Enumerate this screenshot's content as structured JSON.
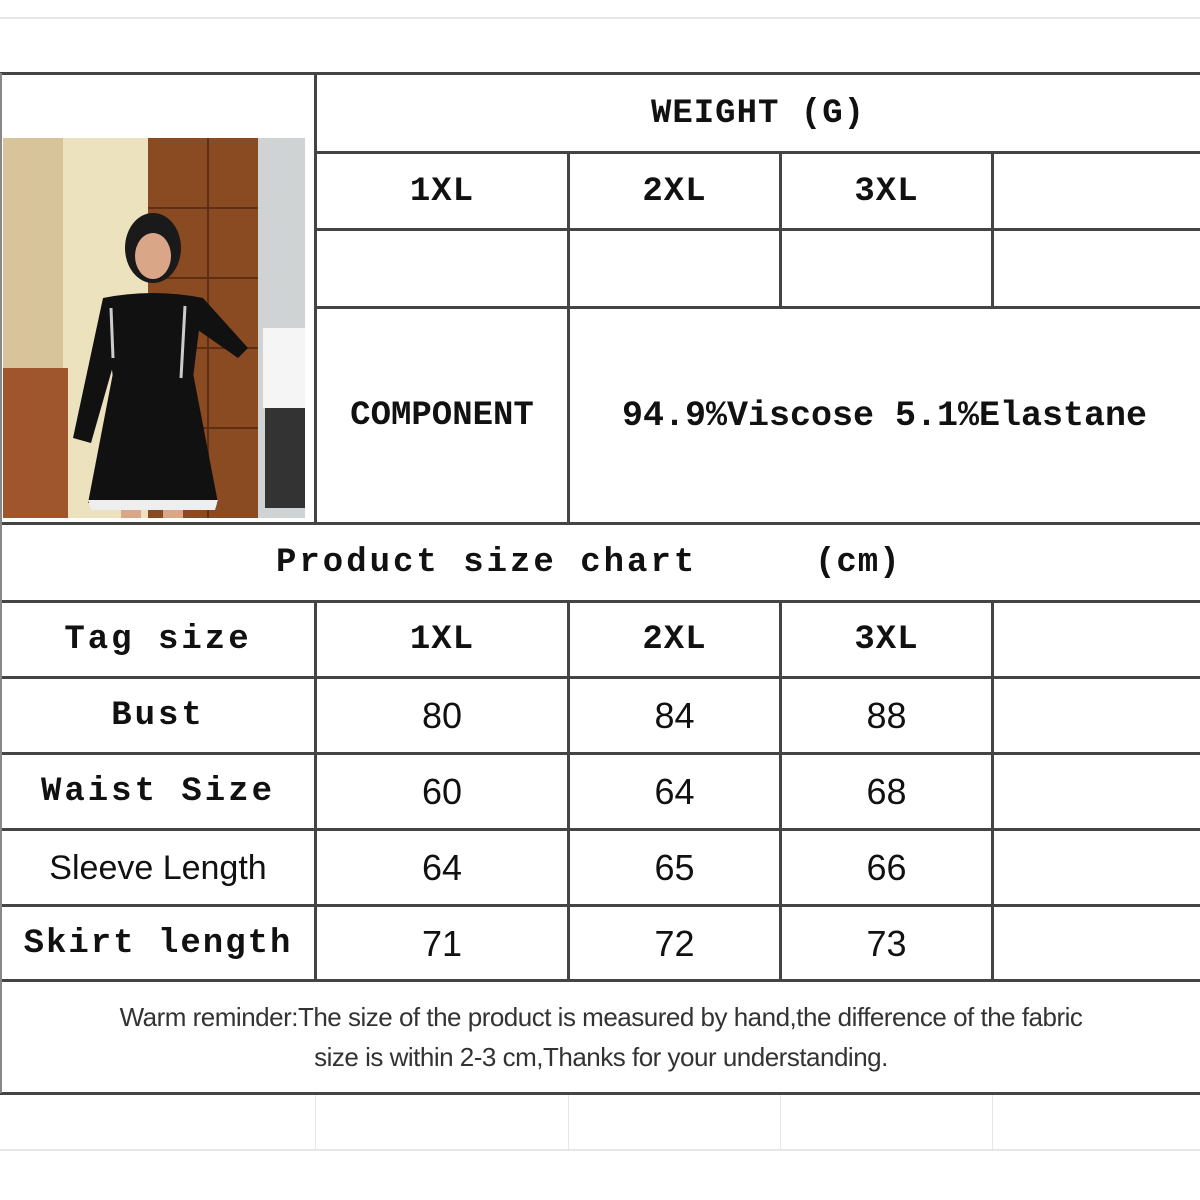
{
  "weight_header": "WEIGHT (G)",
  "weight_sizes": [
    "1XL",
    "2XL",
    "3XL",
    ""
  ],
  "weight_values": [
    "",
    "",
    "",
    ""
  ],
  "component": {
    "label": "COMPONENT",
    "value": "94.9%Viscose 5.1%Elastane"
  },
  "size_chart_title": "Product size chart",
  "size_chart_unit": "(cm)",
  "table": {
    "header": [
      "Tag size",
      "1XL",
      "2XL",
      "3XL",
      ""
    ],
    "rows": [
      [
        "Bust",
        "80",
        "84",
        "88",
        ""
      ],
      [
        "Waist Size",
        "60",
        "64",
        "68",
        ""
      ],
      [
        "Sleeve Length",
        "64",
        "65",
        "66",
        ""
      ],
      [
        "Skirt length",
        "71",
        "72",
        "73",
        ""
      ]
    ]
  },
  "reminder_line1": "Warm reminder:The size of the product is measured by hand,the difference of the fabric",
  "reminder_line2": "size is within 2-3 cm,Thanks for your understanding."
}
